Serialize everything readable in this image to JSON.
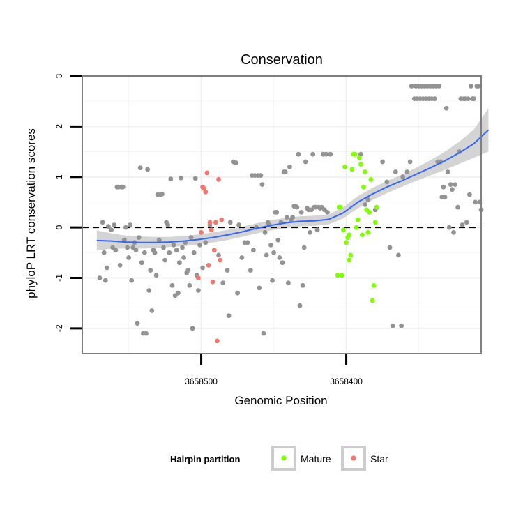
{
  "chart_data": {
    "type": "scatter",
    "title": "Conservation",
    "xlabel": "Genomic Position",
    "ylabel": "phyloP LRT conservation scores",
    "x_reversed": true,
    "xlim": [
      3658582,
      3658307
    ],
    "ylim": [
      -2.5,
      3.0
    ],
    "x_ticks": [
      3658500,
      3658400
    ],
    "x_tick_labels": [
      "3658500",
      "3658400"
    ],
    "y_ticks": [
      -2,
      -1,
      0,
      1,
      2,
      3
    ],
    "y_tick_labels": [
      "-2",
      "-1",
      "0",
      "1",
      "2",
      "3"
    ],
    "grid": true,
    "reference_line": {
      "y": 0,
      "style": "dashed"
    },
    "legend": {
      "title": "Hairpin partition",
      "placement": "bottom",
      "entries": [
        {
          "label": "Mature",
          "color": "#7fff00"
        },
        {
          "label": "Star",
          "color": "#f4776d"
        }
      ]
    },
    "colors": {
      "other": "#939393",
      "smooth": "#3366ff",
      "ribbon": "#cccccc"
    },
    "series": [
      {
        "group": "other",
        "points": [
          [
            3658570,
            -1.0
          ],
          [
            3658568,
            0.1
          ],
          [
            3658567,
            -0.5
          ],
          [
            3658566,
            -1.05
          ],
          [
            3658565,
            -0.8
          ],
          [
            3658564,
            0.02
          ],
          [
            3658562,
            -0.05
          ],
          [
            3658561,
            -0.4
          ],
          [
            3658560,
            0.05
          ],
          [
            3658559,
            -0.45
          ],
          [
            3658558,
            0.8
          ],
          [
            3658557,
            0.8
          ],
          [
            3658556,
            -0.75
          ],
          [
            3658555,
            0.8
          ],
          [
            3658554,
            0.8
          ],
          [
            3658553,
            -0.25
          ],
          [
            3658552,
            0.0
          ],
          [
            3658551,
            -0.4
          ],
          [
            3658550,
            -0.6
          ],
          [
            3658549,
            0.05
          ],
          [
            3658548,
            -1.05
          ],
          [
            3658547,
            -0.4
          ],
          [
            3658546,
            -0.3
          ],
          [
            3658545,
            -0.45
          ],
          [
            3658544,
            -1.9
          ],
          [
            3658543,
            -0.2
          ],
          [
            3658542,
            1.18
          ],
          [
            3658541,
            -0.7
          ],
          [
            3658540,
            -2.1
          ],
          [
            3658539,
            -0.5
          ],
          [
            3658538,
            -2.1
          ],
          [
            3658537,
            1.15
          ],
          [
            3658536,
            -1.25
          ],
          [
            3658535,
            -0.85
          ],
          [
            3658534,
            -1.65
          ],
          [
            3658533,
            -0.45
          ],
          [
            3658532,
            -0.5
          ],
          [
            3658531,
            -0.95
          ],
          [
            3658530,
            0.65
          ],
          [
            3658529,
            -0.25
          ],
          [
            3658528,
            0.65
          ],
          [
            3658527,
            0.66
          ],
          [
            3658526,
            -0.4
          ],
          [
            3658525,
            -0.65
          ],
          [
            3658524,
            0.1
          ],
          [
            3658523,
            0.05
          ],
          [
            3658522,
            -0.5
          ],
          [
            3658521,
            0.96
          ],
          [
            3658520,
            -1.15
          ],
          [
            3658519,
            -0.35
          ],
          [
            3658518,
            -1.35
          ],
          [
            3658517,
            -0.45
          ],
          [
            3658516,
            -1.3
          ],
          [
            3658515,
            -0.7
          ],
          [
            3658514,
            0.98
          ],
          [
            3658513,
            -0.4
          ],
          [
            3658512,
            -0.6
          ],
          [
            3658511,
            -0.3
          ],
          [
            3658510,
            -0.9
          ],
          [
            3658509,
            -0.85
          ],
          [
            3658508,
            -1.15
          ],
          [
            3658507,
            -0.2
          ],
          [
            3658506,
            -2.0
          ],
          [
            3658505,
            -0.5
          ],
          [
            3658504,
            0.97
          ],
          [
            3658503,
            -0.95
          ],
          [
            3658502,
            -1.25
          ],
          [
            3658501,
            -0.35
          ],
          [
            3658499,
            -0.8
          ],
          [
            3658497,
            -0.3
          ],
          [
            3658494,
            0.05
          ],
          [
            3658488,
            -0.55
          ],
          [
            3658485,
            -1.1
          ],
          [
            3658482,
            -0.85
          ],
          [
            3658481,
            -1.75
          ],
          [
            3658480,
            0.1
          ],
          [
            3658478,
            1.3
          ],
          [
            3658476,
            1.28
          ],
          [
            3658475,
            -1.3
          ],
          [
            3658474,
            0.05
          ],
          [
            3658472,
            -0.6
          ],
          [
            3658470,
            -0.3
          ],
          [
            3658468,
            -0.3
          ],
          [
            3658466,
            -0.85
          ],
          [
            3658465,
            1.03
          ],
          [
            3658464,
            -0.45
          ],
          [
            3658463,
            1.03
          ],
          [
            3658462,
            0.0
          ],
          [
            3658461,
            1.03
          ],
          [
            3658460,
            -1.2
          ],
          [
            3658459,
            1.03
          ],
          [
            3658458,
            0.85
          ],
          [
            3658457,
            -2.1
          ],
          [
            3658456,
            -0.1
          ],
          [
            3658455,
            -0.55
          ],
          [
            3658454,
            0.1
          ],
          [
            3658453,
            0.05
          ],
          [
            3658452,
            -0.35
          ],
          [
            3658451,
            -1.05
          ],
          [
            3658450,
            -0.5
          ],
          [
            3658449,
            0.3
          ],
          [
            3658448,
            0.3
          ],
          [
            3658447,
            -0.25
          ],
          [
            3658446,
            -0.6
          ],
          [
            3658445,
            0.1
          ],
          [
            3658444,
            -0.7
          ],
          [
            3658443,
            1.1
          ],
          [
            3658442,
            1.1
          ],
          [
            3658441,
            0.2
          ],
          [
            3658440,
            -1.1
          ],
          [
            3658439,
            1.2
          ],
          [
            3658438,
            0.15
          ],
          [
            3658437,
            0.2
          ],
          [
            3658436,
            0.42
          ],
          [
            3658435,
            0.42
          ],
          [
            3658434,
            0.4
          ],
          [
            3658433,
            1.45
          ],
          [
            3658432,
            -1.55
          ],
          [
            3658431,
            0.3
          ],
          [
            3658430,
            -1.15
          ],
          [
            3658429,
            -0.4
          ],
          [
            3658428,
            1.3
          ],
          [
            3658427,
            0.38
          ],
          [
            3658426,
            0.35
          ],
          [
            3658425,
            -0.1
          ],
          [
            3658424,
            0.35
          ],
          [
            3658423,
            1.45
          ],
          [
            3658422,
            0.4
          ],
          [
            3658421,
            0.4
          ],
          [
            3658420,
            -0.05
          ],
          [
            3658419,
            0.4
          ],
          [
            3658418,
            0.38
          ],
          [
            3658417,
            0.4
          ],
          [
            3658416,
            1.45
          ],
          [
            3658415,
            0.35
          ],
          [
            3658414,
            1.45
          ],
          [
            3658413,
            0.3
          ],
          [
            3658411,
            1.45
          ],
          [
            3658390,
            1.45
          ],
          [
            3658387,
            0.45
          ],
          [
            3658385,
            0.55
          ],
          [
            3658380,
            0.35
          ],
          [
            3658375,
            1.3
          ],
          [
            3658372,
            0.9
          ],
          [
            3658370,
            -0.4
          ],
          [
            3658368,
            -1.95
          ],
          [
            3658366,
            1.1
          ],
          [
            3658364,
            -0.55
          ],
          [
            3658362,
            -1.95
          ],
          [
            3658361,
            1.0
          ],
          [
            3658358,
            1.1
          ],
          [
            3658356,
            1.3
          ],
          [
            3658355,
            2.8
          ],
          [
            3658353,
            2.55
          ],
          [
            3658352,
            2.8
          ],
          [
            3658351,
            2.55
          ],
          [
            3658350,
            2.8
          ],
          [
            3658349,
            2.55
          ],
          [
            3658348,
            2.8
          ],
          [
            3658347,
            2.55
          ],
          [
            3658346,
            2.8
          ],
          [
            3658345,
            2.55
          ],
          [
            3658344,
            2.8
          ],
          [
            3658343,
            2.55
          ],
          [
            3658342,
            2.8
          ],
          [
            3658341,
            2.55
          ],
          [
            3658340,
            2.8
          ],
          [
            3658339,
            2.55
          ],
          [
            3658338,
            2.8
          ],
          [
            3658337,
            1.3
          ],
          [
            3658336,
            2.8
          ],
          [
            3658335,
            1.3
          ],
          [
            3658334,
            0.6
          ],
          [
            3658333,
            0.8
          ],
          [
            3658332,
            0.6
          ],
          [
            3658331,
            2.36
          ],
          [
            3658330,
            1.1
          ],
          [
            3658329,
            0.0
          ],
          [
            3658328,
            0.85
          ],
          [
            3658327,
            0.75
          ],
          [
            3658326,
            -0.1
          ],
          [
            3658325,
            0.85
          ],
          [
            3658323,
            0.4
          ],
          [
            3658322,
            1.5
          ],
          [
            3658321,
            2.55
          ],
          [
            3658320,
            0.05
          ],
          [
            3658319,
            2.55
          ],
          [
            3658318,
            2.55
          ],
          [
            3658317,
            0.1
          ],
          [
            3658316,
            2.55
          ],
          [
            3658315,
            0.65
          ],
          [
            3658314,
            2.8
          ],
          [
            3658313,
            2.55
          ],
          [
            3658312,
            2.55
          ],
          [
            3658311,
            0.5
          ],
          [
            3658310,
            2.8
          ],
          [
            3658309,
            2.8
          ],
          [
            3658308,
            0.5
          ],
          [
            3658307,
            0.35
          ]
        ]
      },
      {
        "group": "mature",
        "name": "Mature",
        "points": [
          [
            3658405,
            0.4
          ],
          [
            3658404,
            0.4
          ],
          [
            3658403,
            -0.95
          ],
          [
            3658402,
            -0.05
          ],
          [
            3658401,
            1.2
          ],
          [
            3658400,
            -0.3
          ],
          [
            3658399,
            -0.2
          ],
          [
            3658398,
            -0.15
          ],
          [
            3658397,
            -0.55
          ],
          [
            3658396,
            1.15
          ],
          [
            3658395,
            1.45
          ],
          [
            3658394,
            1.45
          ],
          [
            3658393,
            0.0
          ],
          [
            3658392,
            0.15
          ],
          [
            3658391,
            1.38
          ],
          [
            3658390,
            1.25
          ],
          [
            3658389,
            -0.15
          ],
          [
            3658388,
            0.8
          ],
          [
            3658387,
            1.1
          ],
          [
            3658386,
            0.35
          ],
          [
            3658385,
            -0.1
          ],
          [
            3658384,
            0.3
          ],
          [
            3658383,
            0.95
          ],
          [
            3658382,
            -1.45
          ],
          [
            3658381,
            -1.15
          ],
          [
            3658380,
            0.1
          ],
          [
            3658379,
            0.4
          ],
          [
            3658406,
            -0.95
          ],
          [
            3658398,
            -0.65
          ]
        ]
      },
      {
        "group": "star",
        "name": "Star",
        "points": [
          [
            3658502,
            -1.0
          ],
          [
            3658500,
            -0.1
          ],
          [
            3658499,
            0.8
          ],
          [
            3658498,
            0.77
          ],
          [
            3658497,
            0.7
          ],
          [
            3658496,
            1.08
          ],
          [
            3658495,
            -0.75
          ],
          [
            3658494,
            0.1
          ],
          [
            3658493,
            -0.05
          ],
          [
            3658492,
            -1.08
          ],
          [
            3658491,
            -0.45
          ],
          [
            3658490,
            0.1
          ],
          [
            3658489,
            -2.25
          ],
          [
            3658488,
            0.95
          ],
          [
            3658487,
            -0.65
          ],
          [
            3658486,
            0.15
          ]
        ]
      }
    ],
    "smooth": {
      "x": [
        3658572,
        3658562,
        3658552,
        3658542,
        3658532,
        3658522,
        3658512,
        3658502,
        3658492,
        3658482,
        3658472,
        3658462,
        3658452,
        3658442,
        3658432,
        3658422,
        3658412,
        3658402,
        3658392,
        3658382,
        3658372,
        3658362,
        3658352,
        3658342,
        3658332,
        3658322,
        3658312,
        3658302
      ],
      "y": [
        -0.26,
        -0.27,
        -0.29,
        -0.3,
        -0.3,
        -0.29,
        -0.27,
        -0.24,
        -0.2,
        -0.15,
        -0.09,
        -0.02,
        0.04,
        0.09,
        0.12,
        0.13,
        0.16,
        0.29,
        0.5,
        0.66,
        0.8,
        0.92,
        1.05,
        1.18,
        1.32,
        1.48,
        1.66,
        1.93
      ],
      "ci_low": [
        -0.46,
        -0.42,
        -0.42,
        -0.42,
        -0.41,
        -0.39,
        -0.37,
        -0.34,
        -0.3,
        -0.25,
        -0.19,
        -0.12,
        -0.06,
        -0.01,
        0.02,
        0.03,
        0.06,
        0.18,
        0.38,
        0.54,
        0.68,
        0.8,
        0.92,
        1.03,
        1.14,
        1.26,
        1.38,
        1.5
      ],
      "ci_high": [
        -0.06,
        -0.12,
        -0.16,
        -0.18,
        -0.19,
        -0.19,
        -0.17,
        -0.14,
        -0.1,
        -0.05,
        0.01,
        0.08,
        0.14,
        0.19,
        0.22,
        0.23,
        0.26,
        0.4,
        0.62,
        0.78,
        0.92,
        1.04,
        1.18,
        1.33,
        1.5,
        1.7,
        1.94,
        2.36
      ]
    }
  }
}
